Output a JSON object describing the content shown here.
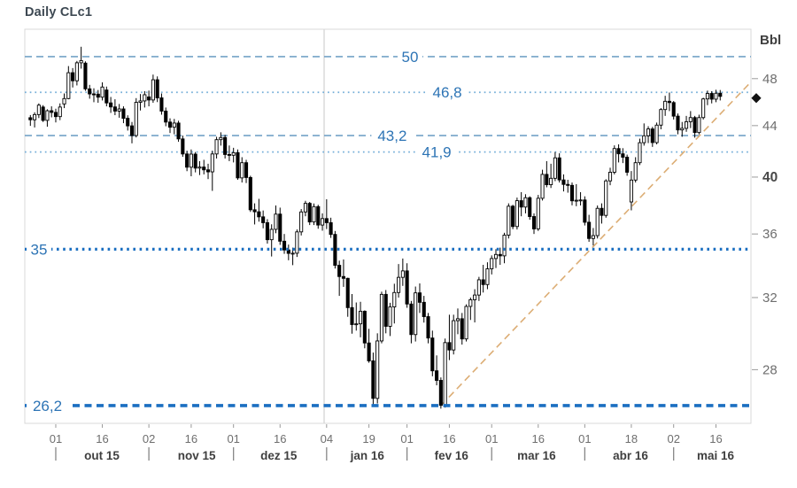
{
  "header": {
    "title": "Daily CLc1"
  },
  "chart_data": {
    "type": "candlestick",
    "title": "Daily CLc1",
    "unit_label": "Bbl",
    "y_axis": {
      "scale": "log",
      "ticks": [
        48,
        44,
        40,
        36,
        32,
        28
      ],
      "bold_tick": 40,
      "top_price": 52.6,
      "bottom_price": 25.35
    },
    "x_axis": {
      "day_ticks": [
        {
          "t": "01",
          "i": 6
        },
        {
          "t": "16",
          "i": 17
        },
        {
          "t": "02",
          "i": 28
        },
        {
          "t": "16",
          "i": 38
        },
        {
          "t": "01",
          "i": 48
        },
        {
          "t": "16",
          "i": 59
        },
        {
          "t": "04",
          "i": 70
        },
        {
          "t": "19",
          "i": 80
        },
        {
          "t": "01",
          "i": 89
        },
        {
          "t": "16",
          "i": 99
        },
        {
          "t": "01",
          "i": 109
        },
        {
          "t": "16",
          "i": 120
        },
        {
          "t": "01",
          "i": 131
        },
        {
          "t": "18",
          "i": 142
        },
        {
          "t": "02",
          "i": 152
        },
        {
          "t": "16",
          "i": 162
        }
      ],
      "month_separators_i": [
        6,
        28,
        48,
        70,
        89,
        109,
        131,
        152
      ],
      "month_labels": [
        {
          "t": "out 15",
          "i": 16.9
        },
        {
          "t": "nov 15",
          "i": 39.3
        },
        {
          "t": "dez 15",
          "i": 58.7
        },
        {
          "t": "jan 16",
          "i": 79.6
        },
        {
          "t": "fev 16",
          "i": 99.5
        },
        {
          "t": "mar 16",
          "i": 119.6
        },
        {
          "t": "abr 16",
          "i": 141.8
        },
        {
          "t": "mai 16",
          "i": 161.9
        }
      ],
      "year_divider_i": 69.0
    },
    "levels": [
      {
        "value": 50,
        "label": "50",
        "style": "dash-light",
        "label_i": 89.7
      },
      {
        "value": 46.8,
        "label": "46,8",
        "style": "dot-light",
        "label_i": 98.5
      },
      {
        "value": 43.2,
        "label": "43,2",
        "style": "dash-light",
        "label_i": 85.5
      },
      {
        "value": 41.9,
        "label": "41,9",
        "style": "dot-light",
        "label_i": 96.0
      },
      {
        "value": 35,
        "label": "35",
        "style": "dot-heavy",
        "label_i": "left"
      },
      {
        "value": 26.2,
        "label": "26,2",
        "style": "dash-heavy",
        "label_i": "left"
      }
    ],
    "trendline": {
      "from_i": 97,
      "from_price": 26.2,
      "to_i": 170,
      "to_price": 47.6
    },
    "last_price_marker": {
      "price": 46.3,
      "shape": "diamond"
    },
    "colors": {
      "level_light": "#74a3c7",
      "level_dot_light": "#74aed8",
      "level_heavy": "#1b6fc1",
      "level_label": "#2d74b5",
      "trend": "#dcad74",
      "candle": "#000000",
      "axis_text": "#6e6e6e",
      "axis_text_strong": "#3f3f3f",
      "border": "#d8d8d8",
      "year_divider": "#e3e3e3",
      "title": "#3d4852",
      "marker": "#111111"
    },
    "candles": [
      [
        44.65,
        44.87,
        43.98,
        44.48
      ],
      [
        44.48,
        45.1,
        43.85,
        44.91
      ],
      [
        44.91,
        45.85,
        44.62,
        45.7
      ],
      [
        45.54,
        45.7,
        44.3,
        44.43
      ],
      [
        44.43,
        45.35,
        43.91,
        45.23
      ],
      [
        45.23,
        45.6,
        44.68,
        45.09
      ],
      [
        45.09,
        45.4,
        44.26,
        44.74
      ],
      [
        44.74,
        45.85,
        44.45,
        45.54
      ],
      [
        45.8,
        46.7,
        45.45,
        46.26
      ],
      [
        46.26,
        49.13,
        46.2,
        48.53
      ],
      [
        48.53,
        48.95,
        47.22,
        47.81
      ],
      [
        47.81,
        49.6,
        47.4,
        49.43
      ],
      [
        49.43,
        50.92,
        48.9,
        49.63
      ],
      [
        49.4,
        49.56,
        46.93,
        47.1
      ],
      [
        47.1,
        47.45,
        46.25,
        46.66
      ],
      [
        46.66,
        47.15,
        45.95,
        46.64
      ],
      [
        46.64,
        47.0,
        45.9,
        46.38
      ],
      [
        46.38,
        47.67,
        46.1,
        47.26
      ],
      [
        47.0,
        47.3,
        45.6,
        45.89
      ],
      [
        45.89,
        46.4,
        45.05,
        45.55
      ],
      [
        45.55,
        46.2,
        44.86,
        45.2
      ],
      [
        45.2,
        45.8,
        44.65,
        45.38
      ],
      [
        45.38,
        45.6,
        44.2,
        44.6
      ],
      [
        44.6,
        44.85,
        43.6,
        43.98
      ],
      [
        43.98,
        44.3,
        42.58,
        43.2
      ],
      [
        43.2,
        46.3,
        43.05,
        45.94
      ],
      [
        45.94,
        46.65,
        45.25,
        46.06
      ],
      [
        46.06,
        46.9,
        45.5,
        46.59
      ],
      [
        46.4,
        46.95,
        45.6,
        46.14
      ],
      [
        46.14,
        48.36,
        45.9,
        47.9
      ],
      [
        47.9,
        48.2,
        45.96,
        46.32
      ],
      [
        46.32,
        46.7,
        44.9,
        45.2
      ],
      [
        45.2,
        45.5,
        43.95,
        44.29
      ],
      [
        44.29,
        44.6,
        43.4,
        43.87
      ],
      [
        43.87,
        44.55,
        43.3,
        44.21
      ],
      [
        44.21,
        44.4,
        42.7,
        42.93
      ],
      [
        42.93,
        43.2,
        41.53,
        41.75
      ],
      [
        41.75,
        42.0,
        40.44,
        40.74
      ],
      [
        40.74,
        42.1,
        40.06,
        41.74
      ],
      [
        41.74,
        41.9,
        40.35,
        40.67
      ],
      [
        40.67,
        41.2,
        40.15,
        40.75
      ],
      [
        40.75,
        41.3,
        40.2,
        40.54
      ],
      [
        40.54,
        41.0,
        39.85,
        40.39
      ],
      [
        40.39,
        42.0,
        38.99,
        41.75
      ],
      [
        41.75,
        43.1,
        41.4,
        42.87
      ],
      [
        42.87,
        43.46,
        42.4,
        43.04
      ],
      [
        43.04,
        43.25,
        41.4,
        41.71
      ],
      [
        41.71,
        42.41,
        41.2,
        41.65
      ],
      [
        41.65,
        42.23,
        41.1,
        41.85
      ],
      [
        41.85,
        42.1,
        39.8,
        39.94
      ],
      [
        39.94,
        41.5,
        39.6,
        41.08
      ],
      [
        41.08,
        41.3,
        39.56,
        39.97
      ],
      [
        39.97,
        40.1,
        37.5,
        37.65
      ],
      [
        37.65,
        38.1,
        36.64,
        37.51
      ],
      [
        37.51,
        38.42,
        36.83,
        37.16
      ],
      [
        37.16,
        37.6,
        36.38,
        36.76
      ],
      [
        36.76,
        37.0,
        35.36,
        35.62
      ],
      [
        35.62,
        36.65,
        34.53,
        36.31
      ],
      [
        36.31,
        37.95,
        36.05,
        37.35
      ],
      [
        37.35,
        37.8,
        35.28,
        35.52
      ],
      [
        35.52,
        36.0,
        34.7,
        34.95
      ],
      [
        34.95,
        35.3,
        34.29,
        34.73
      ],
      [
        34.73,
        35.1,
        33.98,
        34.74
      ],
      [
        34.74,
        36.3,
        34.5,
        36.14
      ],
      [
        36.14,
        37.7,
        35.9,
        37.5
      ],
      [
        37.5,
        38.28,
        37.2,
        38.1
      ],
      [
        38.1,
        38.2,
        36.6,
        36.81
      ],
      [
        36.81,
        38.09,
        36.6,
        37.87
      ],
      [
        37.87,
        38.0,
        36.35,
        36.6
      ],
      [
        36.6,
        37.4,
        36.22,
        37.04
      ],
      [
        37.04,
        38.39,
        36.33,
        36.76
      ],
      [
        36.76,
        37.1,
        35.74,
        35.97
      ],
      [
        35.97,
        36.2,
        33.77,
        33.97
      ],
      [
        33.97,
        34.26,
        32.1,
        33.27
      ],
      [
        33.27,
        34.34,
        32.64,
        33.16
      ],
      [
        33.16,
        33.2,
        30.88,
        31.41
      ],
      [
        31.41,
        32.21,
        29.93,
        30.44
      ],
      [
        30.44,
        31.71,
        30.1,
        30.48
      ],
      [
        30.48,
        31.75,
        29.73,
        31.2
      ],
      [
        31.2,
        31.25,
        29.13,
        29.42
      ],
      [
        29.42,
        30.2,
        28.36,
        28.46
      ],
      [
        28.46,
        28.9,
        26.19,
        26.55
      ],
      [
        26.55,
        29.95,
        26.3,
        29.53
      ],
      [
        29.53,
        32.35,
        29.4,
        32.19
      ],
      [
        32.19,
        32.45,
        29.95,
        30.34
      ],
      [
        30.34,
        31.69,
        29.8,
        31.45
      ],
      [
        31.45,
        32.83,
        30.5,
        32.3
      ],
      [
        32.3,
        34.05,
        32.0,
        33.22
      ],
      [
        33.22,
        34.4,
        32.7,
        33.62
      ],
      [
        33.62,
        34.1,
        31.4,
        31.62
      ],
      [
        31.62,
        31.8,
        29.4,
        29.88
      ],
      [
        29.88,
        32.66,
        29.5,
        32.28
      ],
      [
        32.28,
        32.85,
        31.1,
        31.72
      ],
      [
        31.72,
        32.1,
        30.55,
        30.89
      ],
      [
        30.89,
        31.1,
        29.4,
        29.69
      ],
      [
        29.69,
        30.1,
        27.66,
        27.94
      ],
      [
        27.94,
        28.75,
        27.2,
        27.45
      ],
      [
        27.45,
        27.6,
        26.05,
        26.21
      ],
      [
        26.21,
        29.66,
        26.1,
        29.44
      ],
      [
        29.44,
        31.0,
        28.5,
        29.04
      ],
      [
        29.04,
        31.0,
        28.8,
        30.66
      ],
      [
        30.66,
        31.36,
        29.9,
        30.77
      ],
      [
        30.77,
        31.1,
        29.33,
        29.64
      ],
      [
        29.64,
        31.6,
        29.5,
        31.48
      ],
      [
        31.48,
        32.0,
        30.7,
        31.87
      ],
      [
        31.87,
        32.5,
        30.56,
        32.15
      ],
      [
        32.15,
        33.25,
        31.8,
        33.07
      ],
      [
        33.07,
        34.0,
        32.3,
        32.78
      ],
      [
        32.78,
        34.16,
        32.5,
        33.75
      ],
      [
        33.75,
        34.6,
        33.4,
        34.4
      ],
      [
        34.4,
        35.0,
        33.8,
        34.66
      ],
      [
        34.66,
        35.1,
        34.0,
        34.57
      ],
      [
        34.57,
        36.08,
        34.1,
        35.92
      ],
      [
        35.92,
        38.1,
        35.7,
        37.9
      ],
      [
        37.9,
        38.0,
        36.32,
        36.5
      ],
      [
        36.5,
        38.51,
        36.3,
        38.29
      ],
      [
        38.29,
        38.9,
        37.2,
        37.84
      ],
      [
        37.84,
        38.75,
        37.4,
        38.5
      ],
      [
        38.5,
        38.6,
        36.96,
        37.18
      ],
      [
        37.18,
        37.4,
        36.0,
        36.34
      ],
      [
        36.34,
        38.7,
        36.2,
        38.46
      ],
      [
        38.46,
        40.55,
        38.3,
        40.2
      ],
      [
        40.2,
        41.2,
        39.25,
        39.44
      ],
      [
        39.44,
        41.0,
        39.2,
        39.91
      ],
      [
        39.91,
        41.9,
        39.7,
        41.45
      ],
      [
        41.45,
        41.8,
        39.6,
        39.79
      ],
      [
        39.79,
        40.2,
        38.95,
        39.46
      ],
      [
        39.46,
        39.8,
        38.86,
        39.39
      ],
      [
        39.39,
        39.6,
        37.96,
        38.28
      ],
      [
        38.28,
        39.48,
        37.9,
        38.32
      ],
      [
        38.32,
        38.9,
        37.95,
        38.34
      ],
      [
        38.34,
        38.6,
        36.57,
        36.79
      ],
      [
        36.79,
        37.3,
        35.48,
        35.7
      ],
      [
        35.7,
        36.4,
        35.24,
        35.89
      ],
      [
        35.89,
        37.95,
        35.7,
        37.75
      ],
      [
        37.75,
        38.1,
        36.7,
        37.26
      ],
      [
        37.26,
        39.84,
        37.1,
        39.72
      ],
      [
        39.72,
        40.7,
        39.4,
        40.36
      ],
      [
        40.36,
        42.42,
        40.2,
        42.17
      ],
      [
        42.17,
        42.5,
        41.1,
        41.76
      ],
      [
        41.76,
        42.2,
        41.05,
        41.5
      ],
      [
        41.5,
        41.7,
        40.1,
        40.36
      ],
      [
        38.2,
        40.45,
        37.61,
        39.78
      ],
      [
        39.78,
        41.5,
        39.6,
        41.08
      ],
      [
        41.08,
        42.95,
        40.9,
        42.63
      ],
      [
        42.63,
        44.18,
        42.4,
        43.18
      ],
      [
        43.18,
        43.95,
        42.6,
        43.73
      ],
      [
        43.73,
        43.9,
        42.3,
        42.64
      ],
      [
        42.64,
        44.25,
        42.5,
        44.04
      ],
      [
        44.04,
        45.45,
        43.7,
        45.33
      ],
      [
        45.33,
        46.5,
        44.8,
        46.03
      ],
      [
        46.03,
        46.78,
        45.2,
        45.92
      ],
      [
        45.92,
        46.05,
        44.5,
        44.78
      ],
      [
        44.78,
        45.0,
        43.3,
        43.65
      ],
      [
        43.65,
        44.3,
        43.1,
        43.78
      ],
      [
        43.78,
        44.8,
        43.5,
        44.32
      ],
      [
        44.32,
        45.2,
        43.8,
        44.66
      ],
      [
        44.66,
        44.8,
        43.03,
        43.44
      ],
      [
        43.44,
        44.9,
        43.3,
        44.66
      ],
      [
        44.66,
        46.33,
        44.5,
        46.23
      ],
      [
        46.23,
        46.95,
        45.7,
        46.7
      ],
      [
        46.7,
        46.9,
        45.85,
        46.21
      ],
      [
        46.21,
        47.02,
        45.95,
        46.72
      ],
      [
        46.72,
        47.0,
        46.1,
        46.45
      ]
    ]
  }
}
